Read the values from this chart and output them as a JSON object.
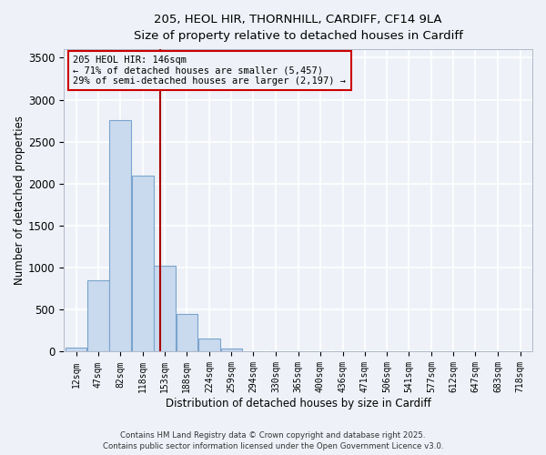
{
  "title1": "205, HEOL HIR, THORNHILL, CARDIFF, CF14 9LA",
  "title2": "Size of property relative to detached houses in Cardiff",
  "xlabel": "Distribution of detached houses by size in Cardiff",
  "ylabel": "Number of detached properties",
  "bar_color": "#c9d9ee",
  "bar_edgecolor": "#7aa4cc",
  "categories": [
    "12sqm",
    "47sqm",
    "82sqm",
    "118sqm",
    "153sqm",
    "188sqm",
    "224sqm",
    "259sqm",
    "294sqm",
    "330sqm",
    "365sqm",
    "400sqm",
    "436sqm",
    "471sqm",
    "506sqm",
    "541sqm",
    "577sqm",
    "612sqm",
    "647sqm",
    "683sqm",
    "718sqm"
  ],
  "bin_centers": [
    12,
    47,
    82,
    118,
    153,
    188,
    224,
    259,
    294,
    330,
    365,
    400,
    436,
    471,
    506,
    541,
    577,
    612,
    647,
    683,
    718
  ],
  "bin_width": 35,
  "values": [
    50,
    850,
    2760,
    2100,
    1020,
    450,
    160,
    40,
    10,
    3,
    1,
    0,
    0,
    0,
    0,
    0,
    0,
    0,
    0,
    0,
    0
  ],
  "ylim": [
    0,
    3600
  ],
  "yticks": [
    0,
    500,
    1000,
    1500,
    2000,
    2500,
    3000,
    3500
  ],
  "property_size": 146,
  "annotation_title": "205 HEOL HIR: 146sqm",
  "annotation_line1": "← 71% of detached houses are smaller (5,457)",
  "annotation_line2": "29% of semi-detached houses are larger (2,197) →",
  "annotation_box_color": "#cc0000",
  "annotation_text_color": "#000000",
  "vline_color": "#aa0000",
  "background_color": "#eef2f8",
  "grid_color": "#ffffff",
  "footer1": "Contains HM Land Registry data © Crown copyright and database right 2025.",
  "footer2": "Contains public sector information licensed under the Open Government Licence v3.0."
}
